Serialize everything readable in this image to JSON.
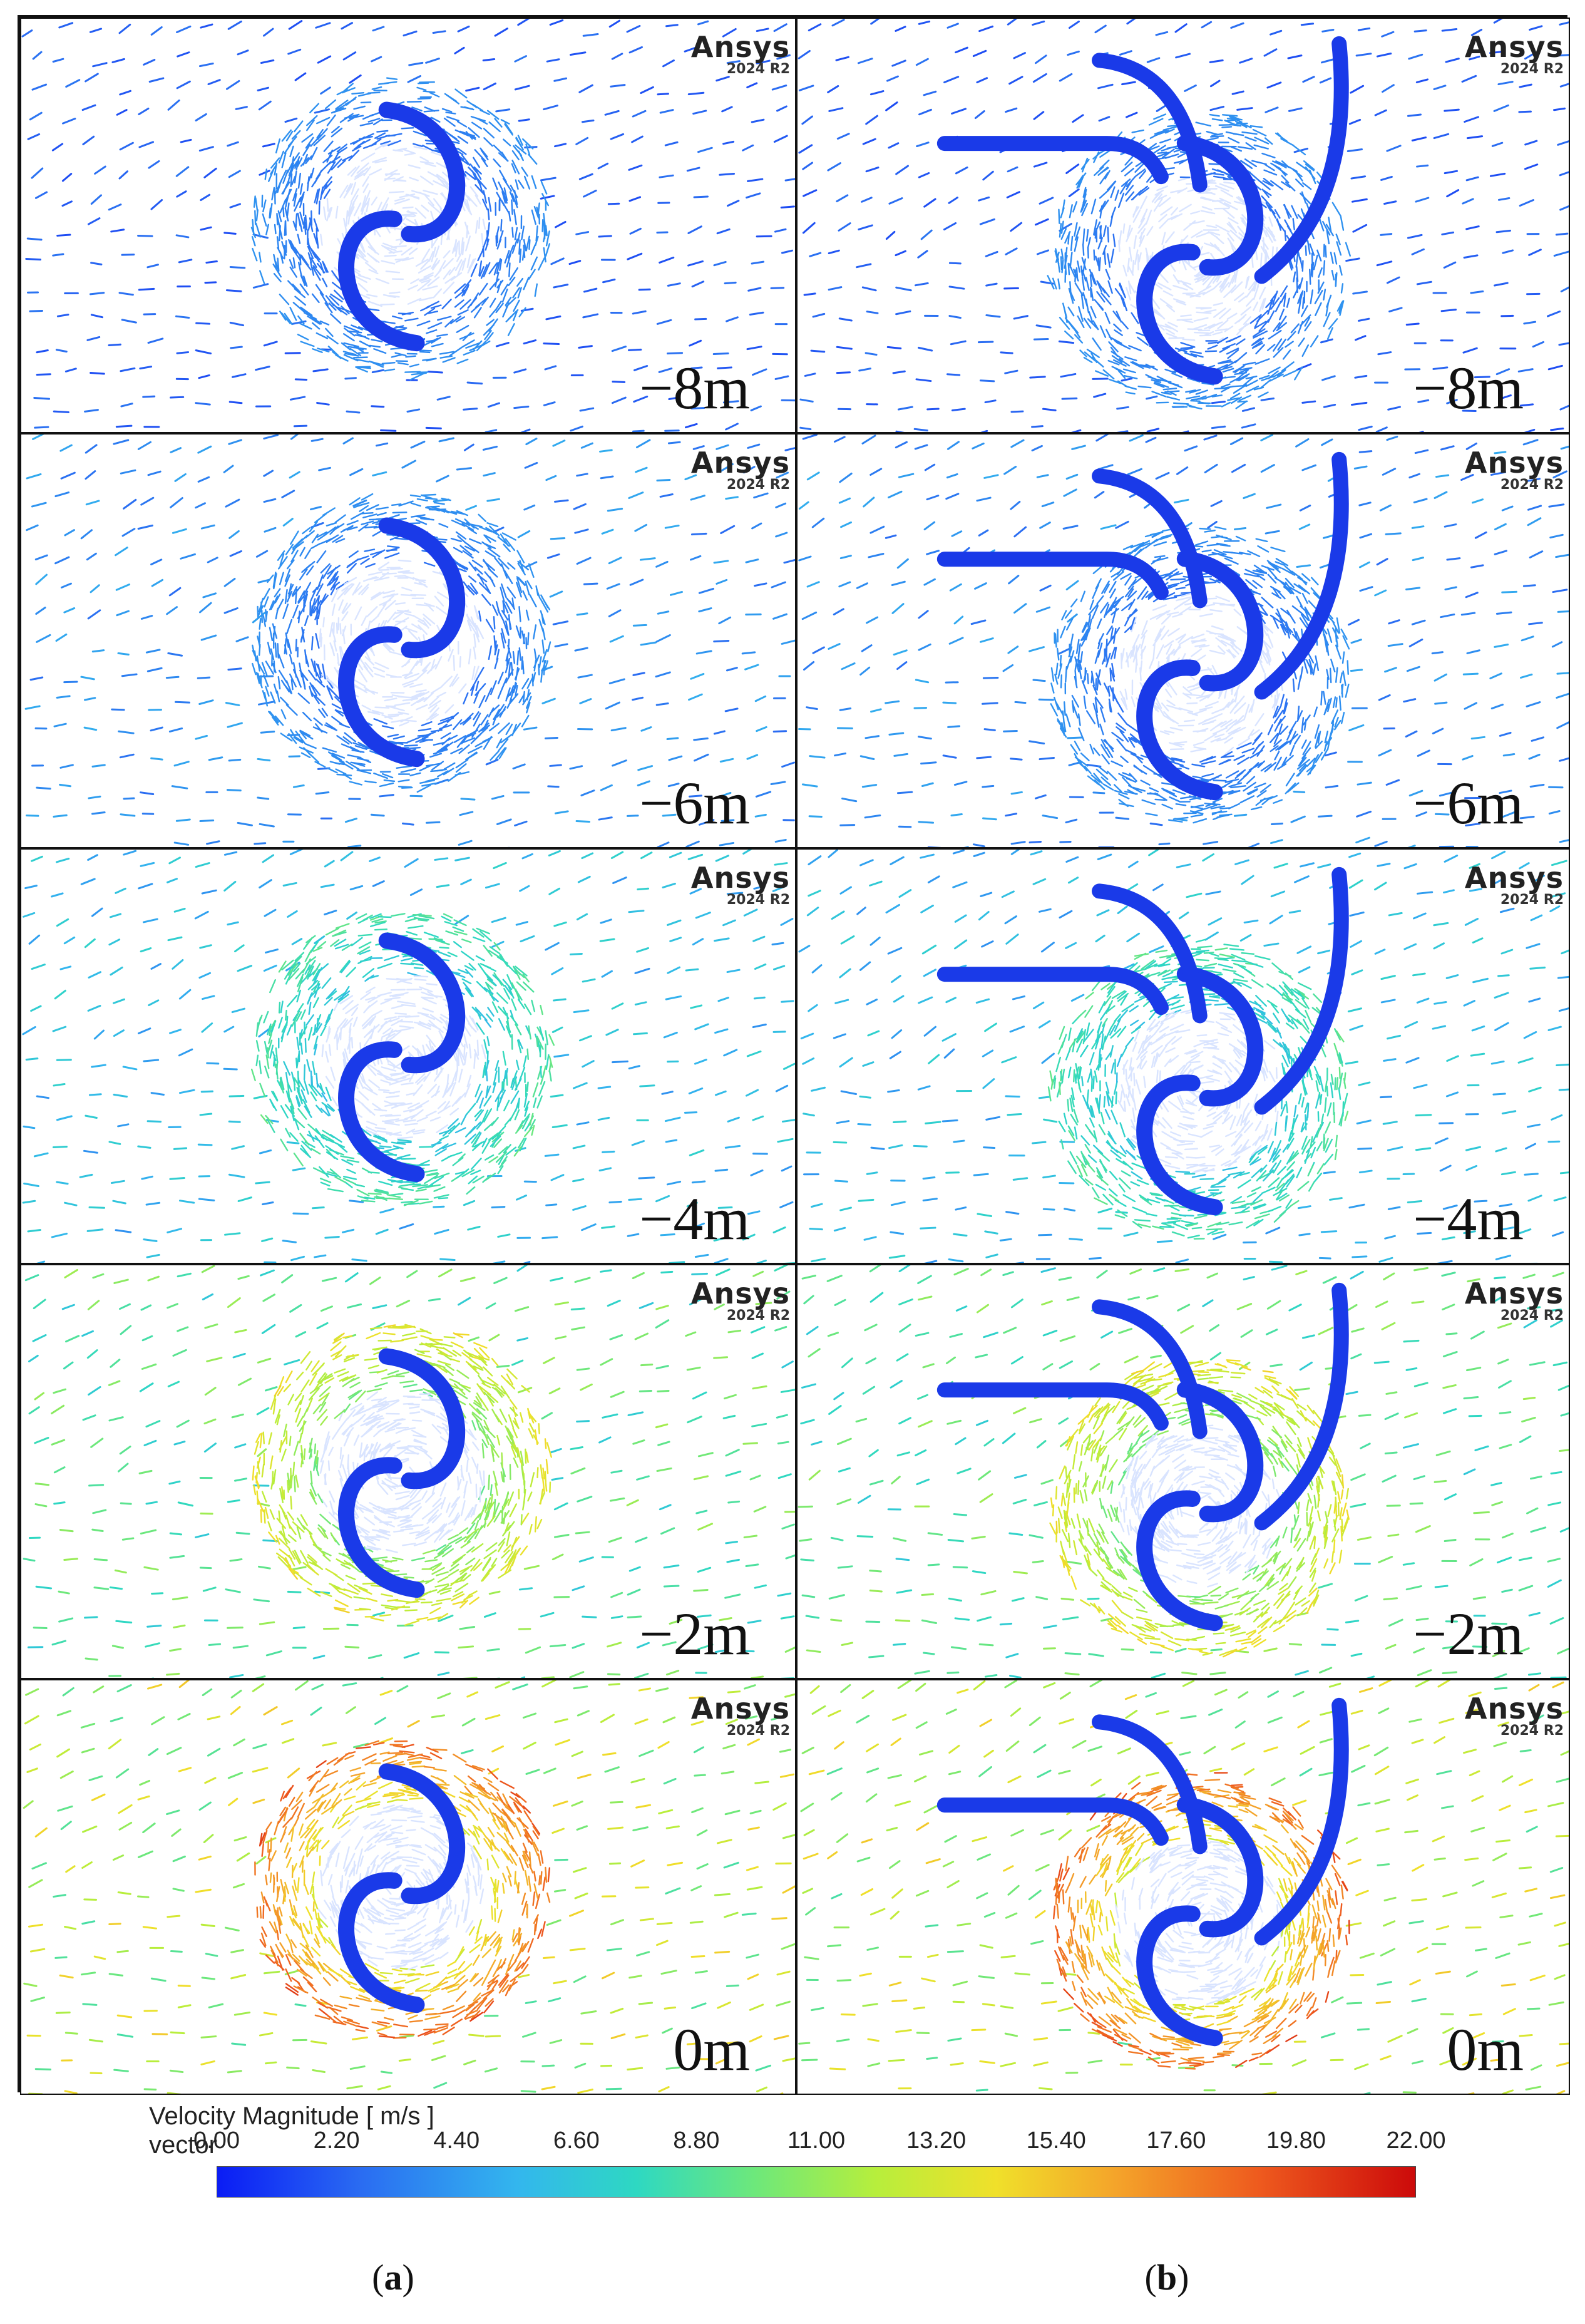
{
  "brand": {
    "name": "Ansys",
    "version": "2024 R2"
  },
  "rows": [
    "−8m",
    "−6m",
    "−4m",
    "−2m",
    "0m"
  ],
  "legend": {
    "title": "Velocity Magnitude [ m/s ]",
    "subtitle": "vector",
    "ticks": [
      "0.00",
      "2.20",
      "4.40",
      "6.60",
      "8.80",
      "11.00",
      "13.20",
      "15.40",
      "17.60",
      "19.80",
      "22.00"
    ],
    "min": 0,
    "max": 22,
    "colors": [
      "#0a1cf5",
      "#2a6cf2",
      "#33b6ee",
      "#2ed8c2",
      "#6ee87a",
      "#b7ee3c",
      "#f0e02a",
      "#f4a42a",
      "#ee5a1e",
      "#cc0a0a"
    ]
  },
  "captions": {
    "a": "a",
    "b": "b"
  },
  "flow_level": [
    0.12,
    0.2,
    0.3,
    0.5,
    0.68
  ],
  "blade_color": "#1a3ae8"
}
